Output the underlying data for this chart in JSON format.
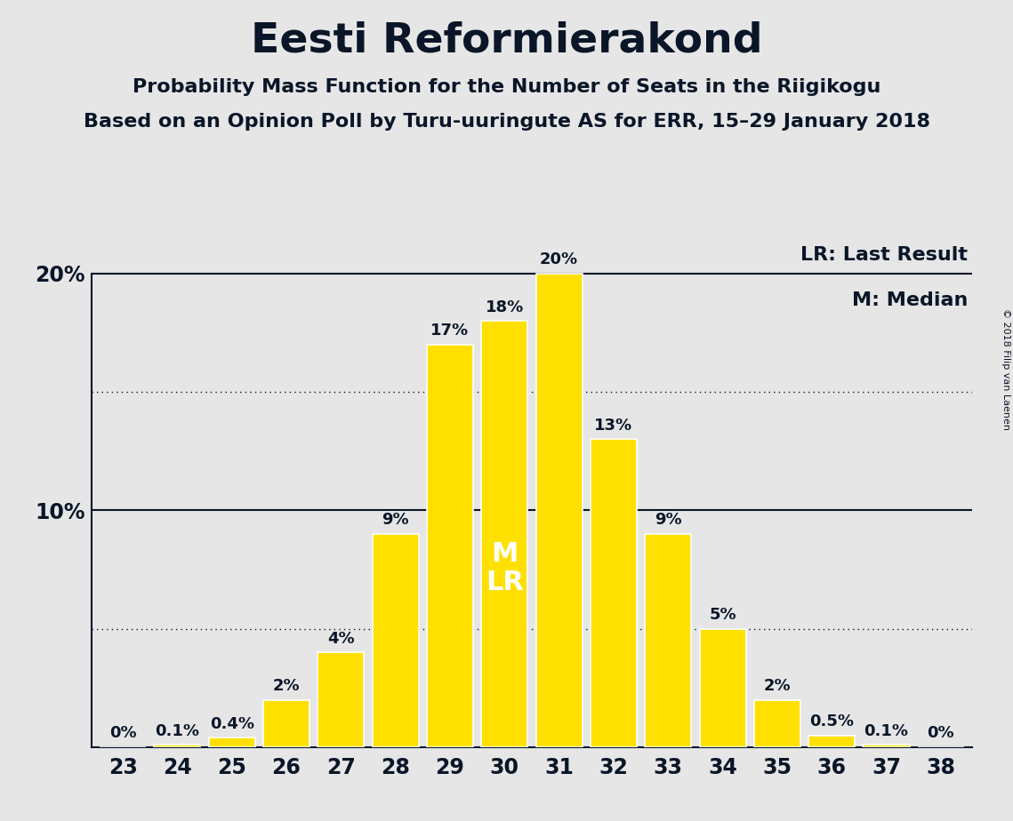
{
  "title": "Eesti Reformierakond",
  "subtitle1": "Probability Mass Function for the Number of Seats in the Riigikogu",
  "subtitle2": "Based on an Opinion Poll by Turu-uuringute AS for ERR, 15–29 January 2018",
  "copyright": "© 2018 Filip van Laenen",
  "seats": [
    23,
    24,
    25,
    26,
    27,
    28,
    29,
    30,
    31,
    32,
    33,
    34,
    35,
    36,
    37,
    38
  ],
  "probabilities": [
    0.0,
    0.1,
    0.4,
    2.0,
    4.0,
    9.0,
    17.0,
    18.0,
    20.0,
    13.0,
    9.0,
    5.0,
    2.0,
    0.5,
    0.1,
    0.0
  ],
  "bar_labels": [
    "0%",
    "0.1%",
    "0.4%",
    "2%",
    "4%",
    "9%",
    "17%",
    "18%",
    "20%",
    "13%",
    "9%",
    "5%",
    "2%",
    "0.5%",
    "0.1%",
    "0%"
  ],
  "bar_color": "#FFE000",
  "bar_edge_color": "#FFFFFF",
  "background_color": "#E6E6E6",
  "median_seat": 30,
  "last_result_seat": 30,
  "median_label": "M",
  "last_result_label": "LR",
  "legend_lr": "LR: Last Result",
  "legend_m": "M: Median",
  "ylim_max": 21.5,
  "dotted_lines": [
    5.0,
    15.0
  ],
  "solid_lines": [
    10.0,
    20.0
  ],
  "title_fontsize": 34,
  "subtitle_fontsize": 16,
  "tick_fontsize": 17,
  "bar_label_fontsize": 13,
  "legend_fontsize": 16,
  "ml_fontsize": 22,
  "copyright_fontsize": 8,
  "text_color": "#0A1628"
}
